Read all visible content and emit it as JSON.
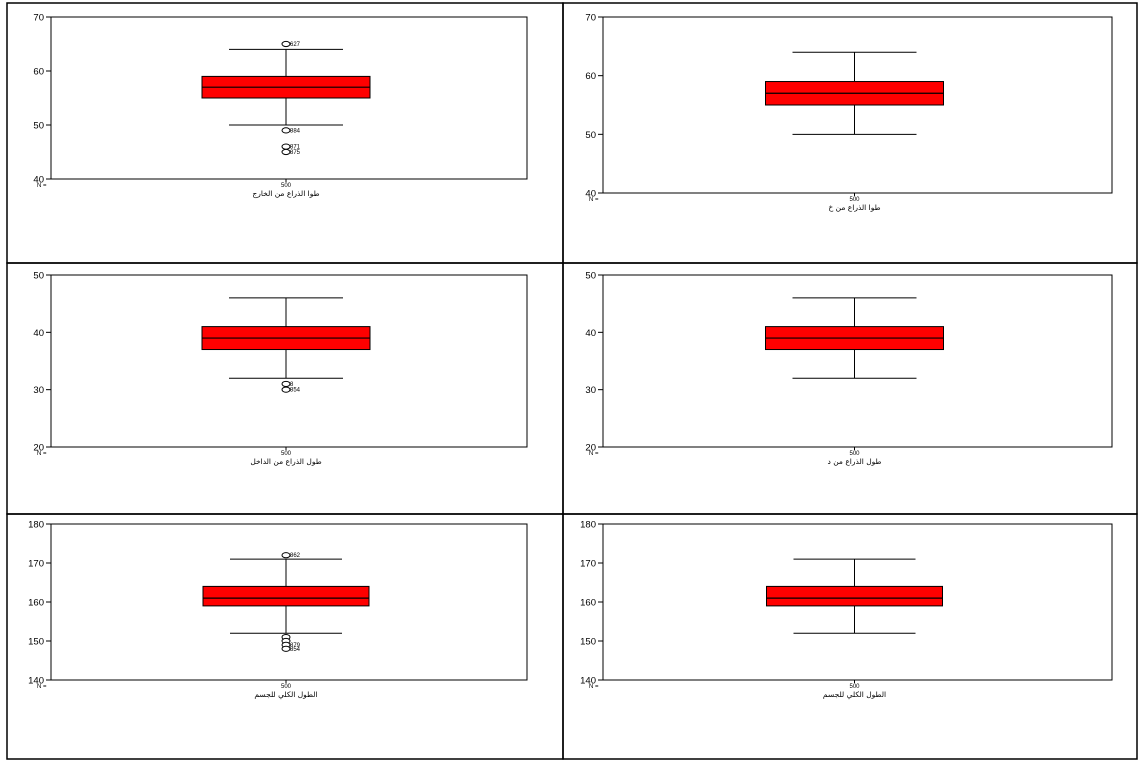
{
  "colors": {
    "box_fill": "#ff0000",
    "line": "#000000",
    "background": "#ffffff"
  },
  "chart_data": [
    {
      "type": "boxplot",
      "xlabel": "طوا الذراع من الخارج",
      "n_prefix": "N =",
      "n_label": "500",
      "ylim": [
        40,
        70
      ],
      "yticks": [
        40,
        50,
        60,
        70
      ],
      "stats": {
        "whisker_low": 50,
        "q1": 55,
        "median": 57,
        "q3": 59,
        "whisker_high": 64
      },
      "outliers": [
        {
          "value": 65,
          "label": "627"
        },
        {
          "value": 49,
          "label": "884"
        },
        {
          "value": 46,
          "label": "871"
        },
        {
          "value": 45,
          "label": "875"
        }
      ]
    },
    {
      "type": "boxplot",
      "xlabel": "طوا الذراع من خ",
      "n_prefix": "N =",
      "n_label": "500",
      "ylim": [
        40,
        70
      ],
      "yticks": [
        40,
        50,
        60,
        70
      ],
      "stats": {
        "whisker_low": 50,
        "q1": 55,
        "median": 57,
        "q3": 59,
        "whisker_high": 64
      },
      "outliers": []
    },
    {
      "type": "boxplot",
      "xlabel": "طول الذراع من الداخل",
      "n_prefix": "N =",
      "n_label": "500",
      "ylim": [
        20,
        50
      ],
      "yticks": [
        20,
        30,
        40,
        50
      ],
      "stats": {
        "whisker_low": 32,
        "q1": 37,
        "median": 39,
        "q3": 41,
        "whisker_high": 46
      },
      "outliers": [
        {
          "value": 31,
          "label": "8"
        },
        {
          "value": 30,
          "label": "854"
        }
      ]
    },
    {
      "type": "boxplot",
      "xlabel": "طول الذراع من د",
      "n_prefix": "N =",
      "n_label": "500",
      "ylim": [
        20,
        50
      ],
      "yticks": [
        20,
        30,
        40,
        50
      ],
      "stats": {
        "whisker_low": 32,
        "q1": 37,
        "median": 39,
        "q3": 41,
        "whisker_high": 46
      },
      "outliers": []
    },
    {
      "type": "boxplot",
      "xlabel": "الطول الكلي للجسم",
      "n_prefix": "N =",
      "n_label": "500",
      "ylim": [
        140,
        180
      ],
      "yticks": [
        140,
        150,
        160,
        170,
        180
      ],
      "stats": {
        "whisker_low": 152,
        "q1": 159,
        "median": 161,
        "q3": 164,
        "whisker_high": 171
      },
      "outliers": [
        {
          "value": 172,
          "label": "862"
        },
        {
          "value": 151,
          "label": ""
        },
        {
          "value": 150,
          "label": ""
        },
        {
          "value": 149,
          "label": "879"
        },
        {
          "value": 148,
          "label": "854"
        }
      ]
    },
    {
      "type": "boxplot",
      "xlabel": "الطول الكلي للجسم",
      "n_prefix": "N =",
      "n_label": "500",
      "ylim": [
        140,
        180
      ],
      "yticks": [
        140,
        150,
        160,
        170,
        180
      ],
      "stats": {
        "whisker_low": 152,
        "q1": 159,
        "median": 161,
        "q3": 164,
        "whisker_high": 171
      },
      "outliers": []
    }
  ]
}
